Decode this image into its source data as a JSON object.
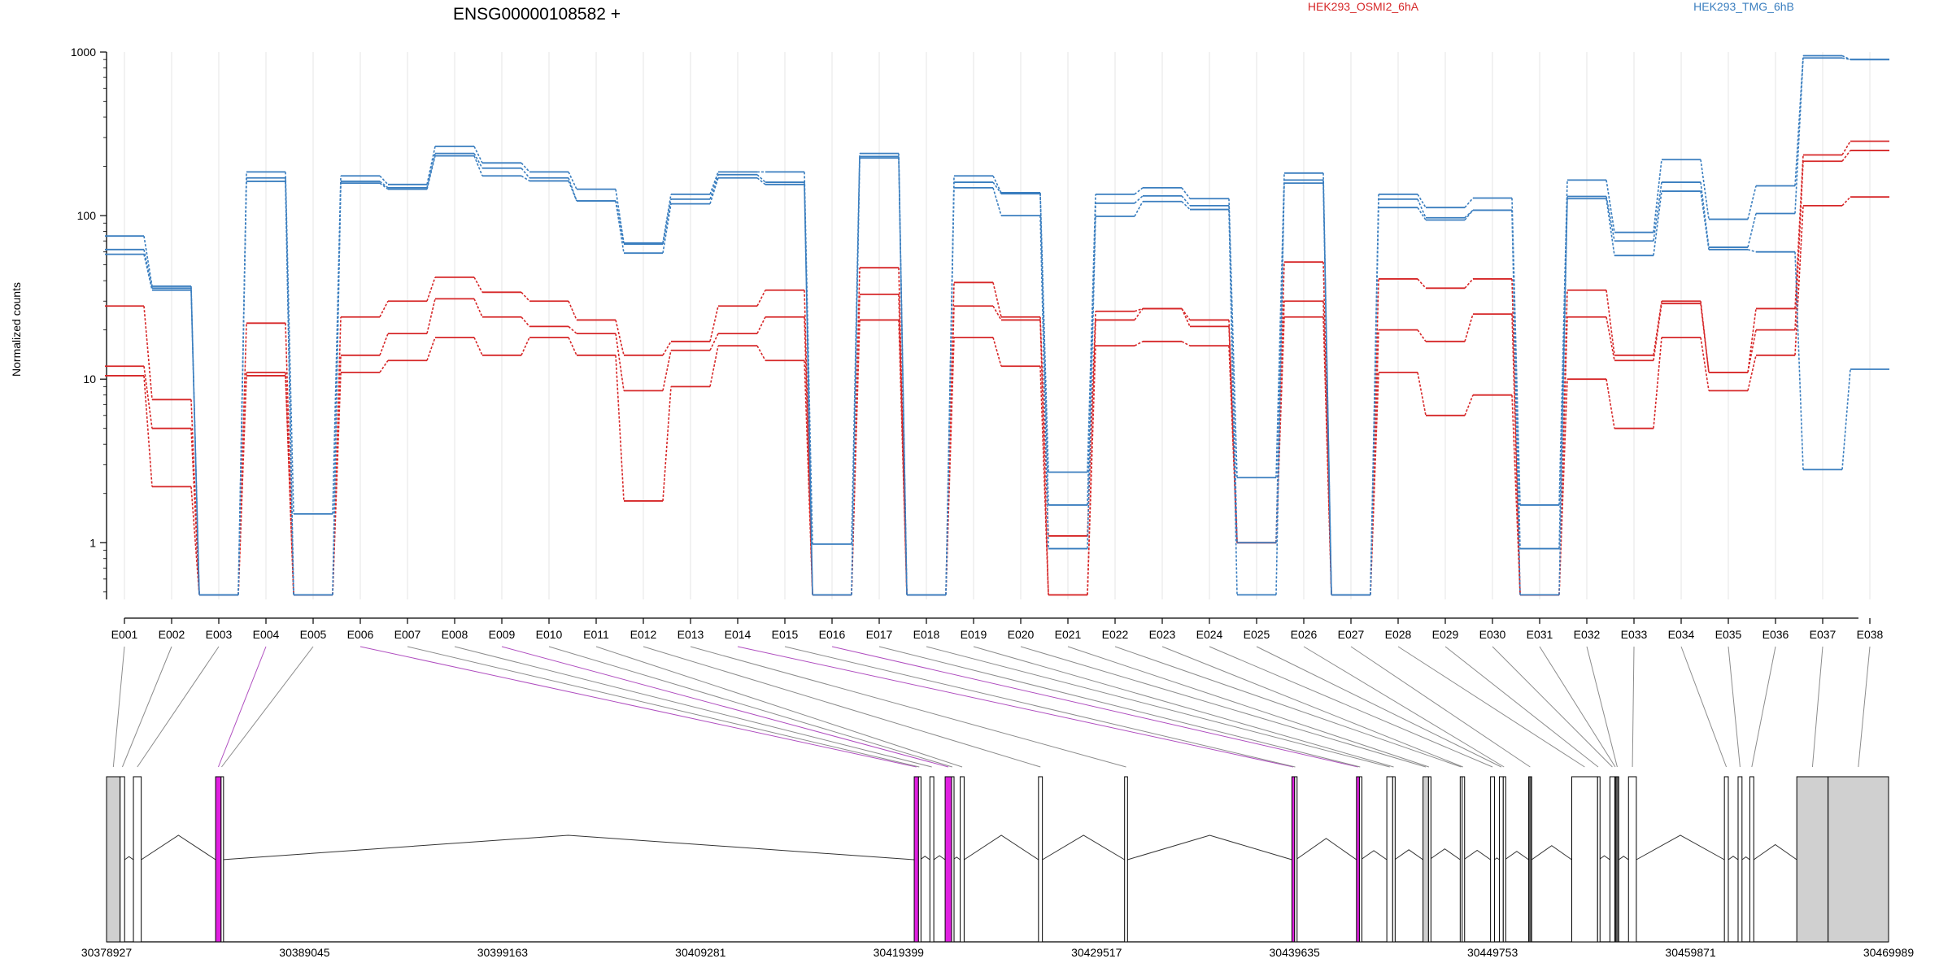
{
  "chart_data": {
    "type": "line",
    "title": "ENSG00000108582 +",
    "ylabel": "Normalized counts",
    "yscale": "log",
    "ylim": [
      0.45,
      1000
    ],
    "yticks": [
      "1",
      "10",
      "100",
      "1000"
    ],
    "grid": "vertical",
    "legend": [
      {
        "label": "HEK293_OSMI2_6hA",
        "color": "#d62728"
      },
      {
        "label": "HEK293_TMG_6hB",
        "color": "#3a7ebf"
      }
    ],
    "categories": [
      "E001",
      "E002",
      "E003",
      "E004",
      "E005",
      "E006",
      "E007",
      "E008",
      "E009",
      "E010",
      "E011",
      "E012",
      "E013",
      "E014",
      "E015",
      "E016",
      "E017",
      "E018",
      "E019",
      "E020",
      "E021",
      "E022",
      "E023",
      "E024",
      "E025",
      "E026",
      "E027",
      "E028",
      "E029",
      "E030",
      "E031",
      "E032",
      "E033",
      "E034",
      "E035",
      "E036",
      "E037",
      "E038"
    ],
    "series": [
      {
        "group": "red",
        "color": "#d62728",
        "values": [
          28,
          7.5,
          0.48,
          22,
          0.48,
          24,
          30,
          42,
          34,
          30,
          23,
          14,
          17,
          28,
          35,
          0.48,
          48,
          0.48,
          39,
          24,
          1.1,
          26,
          27,
          23,
          1.0,
          52,
          0.48,
          41,
          36,
          41,
          0.48,
          35,
          14,
          30,
          11,
          27,
          235,
          285
        ]
      },
      {
        "group": "red",
        "color": "#d62728",
        "values": [
          12,
          5,
          0.48,
          11,
          0.48,
          14,
          19,
          31,
          24,
          21,
          19,
          8.5,
          15,
          19,
          24,
          0.48,
          33,
          0.48,
          28,
          23,
          0.48,
          23,
          27,
          21,
          1.0,
          30,
          0.48,
          20,
          17,
          25,
          0.48,
          24,
          13,
          29,
          11,
          20,
          215,
          250
        ]
      },
      {
        "group": "red",
        "color": "#d62728",
        "values": [
          10.5,
          2.2,
          0.48,
          10.5,
          0.48,
          11,
          13,
          18,
          14,
          18,
          14,
          1.8,
          9,
          16,
          13,
          0.48,
          23,
          0.48,
          18,
          12,
          0.48,
          16,
          17,
          16,
          1.0,
          24,
          0.48,
          11,
          6,
          8,
          0.48,
          10,
          5,
          18,
          8.5,
          14,
          115,
          130
        ]
      },
      {
        "group": "blue",
        "color": "#3a7ebf",
        "values": [
          75,
          37,
          0.48,
          185,
          1.5,
          175,
          155,
          265,
          210,
          185,
          145,
          68,
          135,
          185,
          185,
          0.98,
          240,
          0.48,
          175,
          138,
          2.7,
          135,
          148,
          127,
          2.5,
          182,
          0.48,
          135,
          112,
          128,
          1.7,
          165,
          79,
          220,
          95,
          152,
          950,
          900
        ]
      },
      {
        "group": "blue",
        "color": "#3a7ebf",
        "values": [
          62,
          36,
          0.48,
          170,
          0.48,
          162,
          148,
          240,
          195,
          170,
          123,
          67,
          126,
          178,
          160,
          0.48,
          230,
          0.48,
          160,
          136,
          1.7,
          119,
          132,
          115,
          1.0,
          165,
          0.48,
          126,
          97,
          108,
          0.92,
          131,
          70,
          160,
          64,
          103,
          920,
          900
        ]
      },
      {
        "group": "blue",
        "color": "#3a7ebf",
        "values": [
          58,
          35,
          0.48,
          162,
          0.48,
          158,
          145,
          232,
          175,
          163,
          123,
          59,
          118,
          170,
          155,
          0.48,
          225,
          0.48,
          148,
          100,
          0.92,
          99,
          122,
          109,
          0.48,
          158,
          0.48,
          112,
          94,
          108,
          0.48,
          127,
          57,
          141,
          62,
          60,
          2.8,
          11.5
        ]
      }
    ]
  },
  "gene_model": {
    "coordinate_labels": [
      "30378927",
      "30389045",
      "30399163",
      "30409281",
      "30419399",
      "30429517",
      "30439635",
      "30449753",
      "30459871",
      "30469989"
    ],
    "coord_min": 30378927,
    "coord_max": 30469989,
    "exons": [
      {
        "id": "E001",
        "start": 30378927,
        "end": 30379620,
        "fill": "#d0d0d0"
      },
      {
        "id": "E002",
        "start": 30379620,
        "end": 30379850,
        "fill": "#ffffff"
      },
      {
        "id": "E003",
        "start": 30380300,
        "end": 30380700,
        "fill": "#ffffff"
      },
      {
        "id": "E004",
        "start": 30384500,
        "end": 30384780,
        "fill": "#e020e0"
      },
      {
        "id": "E005",
        "start": 30384780,
        "end": 30384830,
        "fill": "#ffffff"
      },
      {
        "id": "E006",
        "start": 30420200,
        "end": 30420420,
        "fill": "#e020e0"
      },
      {
        "id": "E007",
        "start": 30420420,
        "end": 30420500,
        "fill": "#ffffff"
      },
      {
        "id": "E008",
        "start": 30421000,
        "end": 30421200,
        "fill": "#ffffff"
      },
      {
        "id": "E009",
        "start": 30421780,
        "end": 30422110,
        "fill": "#e020e0"
      },
      {
        "id": "E010",
        "start": 30422110,
        "end": 30422180,
        "fill": "#ffffff"
      },
      {
        "id": "E011",
        "start": 30422550,
        "end": 30422750,
        "fill": "#ffffff"
      },
      {
        "id": "E012",
        "start": 30426550,
        "end": 30426750,
        "fill": "#ffffff"
      },
      {
        "id": "E013",
        "start": 30430950,
        "end": 30431100,
        "fill": "#ffffff"
      },
      {
        "id": "E014",
        "start": 30439500,
        "end": 30439640,
        "fill": "#e020e0"
      },
      {
        "id": "E015",
        "start": 30439640,
        "end": 30439700,
        "fill": "#ffffff"
      },
      {
        "id": "E016",
        "start": 30442800,
        "end": 30442950,
        "fill": "#e020e0"
      },
      {
        "id": "E017",
        "start": 30442950,
        "end": 30443020,
        "fill": "#ffffff"
      },
      {
        "id": "E018",
        "start": 30444350,
        "end": 30444650,
        "fill": "#ffffff"
      },
      {
        "id": "E019",
        "start": 30444650,
        "end": 30444750,
        "fill": "#ffffff"
      },
      {
        "id": "E020",
        "start": 30446200,
        "end": 30446480,
        "fill": "#d0d0d0"
      },
      {
        "id": "E021",
        "start": 30446480,
        "end": 30446520,
        "fill": "#ffffff"
      },
      {
        "id": "E022",
        "start": 30448100,
        "end": 30448200,
        "fill": "#ffffff"
      },
      {
        "id": "E023",
        "start": 30448200,
        "end": 30448280,
        "fill": "#ffffff"
      },
      {
        "id": "E024",
        "start": 30449650,
        "end": 30449850,
        "fill": "#ffffff"
      },
      {
        "id": "E025",
        "start": 30450100,
        "end": 30450300,
        "fill": "#ffffff"
      },
      {
        "id": "E026",
        "start": 30450300,
        "end": 30450380,
        "fill": "#ffffff"
      },
      {
        "id": "E027",
        "start": 30451600,
        "end": 30451750,
        "fill": "#606060"
      },
      {
        "id": "E028",
        "start": 30453800,
        "end": 30455120,
        "fill": "#ffffff"
      },
      {
        "id": "E029",
        "start": 30455120,
        "end": 30455180,
        "fill": "#ffffff"
      },
      {
        "id": "E030",
        "start": 30455750,
        "end": 30456000,
        "fill": "#ffffff"
      },
      {
        "id": "E031",
        "start": 30456000,
        "end": 30456050,
        "fill": "#ffffff"
      },
      {
        "id": "E032",
        "start": 30456050,
        "end": 30456200,
        "fill": "#606060"
      },
      {
        "id": "E033",
        "start": 30456700,
        "end": 30457100,
        "fill": "#ffffff"
      },
      {
        "id": "E034",
        "start": 30461600,
        "end": 30461800,
        "fill": "#ffffff"
      },
      {
        "id": "E035",
        "start": 30462300,
        "end": 30462500,
        "fill": "#ffffff"
      },
      {
        "id": "E036",
        "start": 30462900,
        "end": 30463100,
        "fill": "#ffffff"
      },
      {
        "id": "E037",
        "start": 30465300,
        "end": 30466900,
        "fill": "#d0d0d0"
      },
      {
        "id": "E038",
        "start": 30466900,
        "end": 30469989,
        "fill": "#d0d0d0"
      }
    ],
    "mapping_colors": {
      "default": "#8c8c8c",
      "highlight": "#b04fc0"
    },
    "highlighted": [
      "E004",
      "E006",
      "E009",
      "E014",
      "E016"
    ]
  }
}
